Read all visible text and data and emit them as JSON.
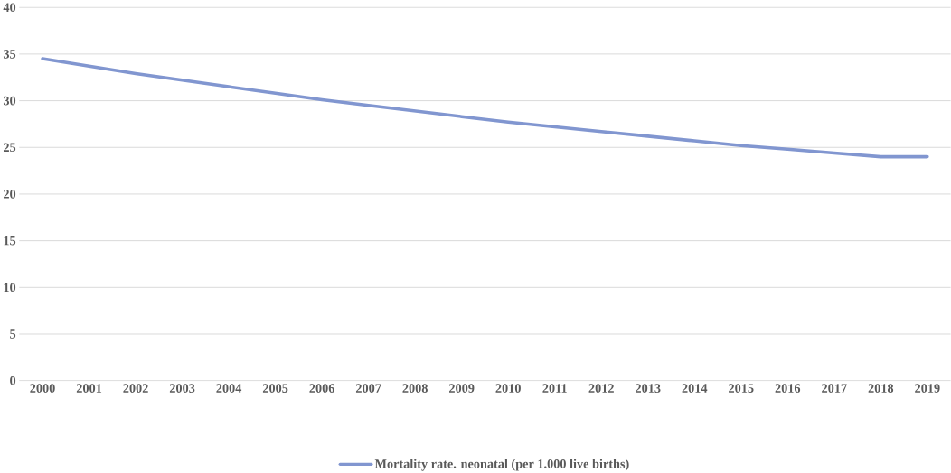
{
  "chart_data": {
    "type": "line",
    "categories": [
      "2000",
      "2001",
      "2002",
      "2003",
      "2004",
      "2005",
      "2006",
      "2007",
      "2008",
      "2009",
      "2010",
      "2011",
      "2012",
      "2013",
      "2014",
      "2015",
      "2016",
      "2017",
      "2018",
      "2019"
    ],
    "series": [
      {
        "name": "Mortality rate. neonatal (per 1.000 live births)",
        "color": "#8196d0",
        "values": [
          34.5,
          33.7,
          32.9,
          32.2,
          31.5,
          30.8,
          30.1,
          29.5,
          28.9,
          28.3,
          27.7,
          27.2,
          26.7,
          26.2,
          25.7,
          25.2,
          24.8,
          24.4,
          24.0,
          24.0
        ]
      }
    ],
    "ylim": [
      0,
      40
    ],
    "yticks": [
      0,
      5,
      10,
      15,
      20,
      25,
      30,
      35,
      40
    ],
    "grid": "y",
    "legend": "bottom",
    "marker": "none",
    "line_style": "solid"
  }
}
